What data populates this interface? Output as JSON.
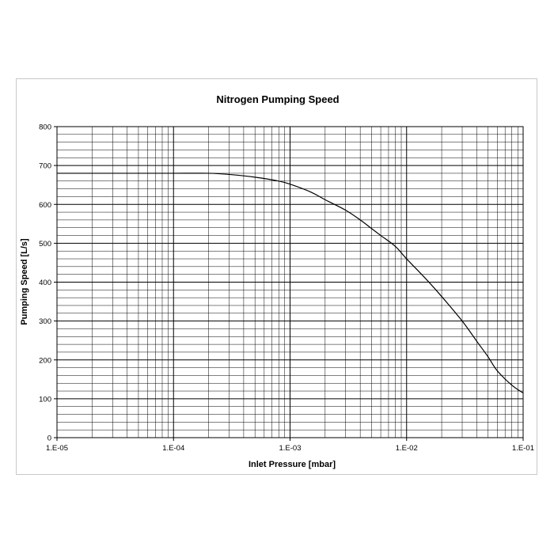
{
  "chart_data": {
    "type": "line",
    "title": "Nitrogen Pumping Speed",
    "xlabel": "Inlet Pressure [mbar]",
    "ylabel": "Pumping Speed [L/s]",
    "x_scale": "log",
    "xlim": [
      1e-05,
      0.1
    ],
    "ylim": [
      0,
      800
    ],
    "x_ticks": [
      1e-05,
      0.0001,
      0.001,
      0.01,
      0.1
    ],
    "x_tick_labels": [
      "1.E-05",
      "1.E-04",
      "1.E-03",
      "1.E-02",
      "1.E-01"
    ],
    "y_ticks": [
      0,
      100,
      200,
      300,
      400,
      500,
      600,
      700,
      800
    ],
    "y_tick_labels": [
      "0",
      "100",
      "200",
      "300",
      "400",
      "500",
      "600",
      "700",
      "800"
    ],
    "grid": true,
    "legend": "none",
    "series": [
      {
        "color": "#000000",
        "x": [
          1e-05,
          5e-05,
          0.0001,
          0.0002,
          0.0003,
          0.0005,
          0.0008,
          0.001,
          0.0015,
          0.002,
          0.003,
          0.004,
          0.005,
          0.006,
          0.008,
          0.01,
          0.015,
          0.02,
          0.03,
          0.04,
          0.05,
          0.06,
          0.08,
          0.1
        ],
        "y": [
          680,
          680,
          680,
          680,
          677,
          670,
          660,
          652,
          632,
          612,
          585,
          560,
          538,
          520,
          492,
          460,
          405,
          363,
          300,
          248,
          208,
          172,
          135,
          115
        ]
      }
    ]
  }
}
